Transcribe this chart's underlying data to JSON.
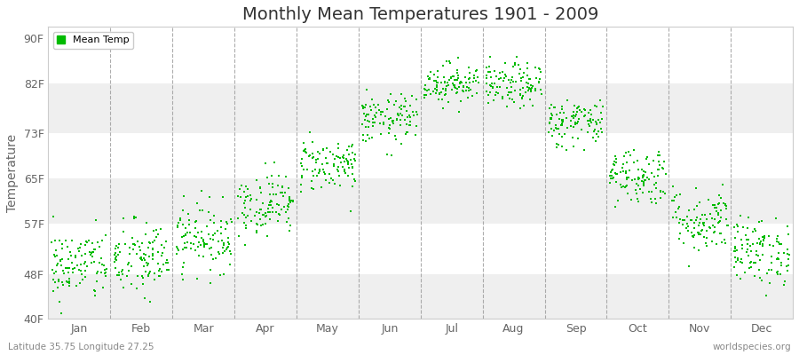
{
  "title": "Monthly Mean Temperatures 1901 - 2009",
  "ylabel": "Temperature",
  "lat_lon_label": "Latitude 35.75 Longitude 27.25",
  "watermark": "worldspecies.org",
  "legend_label": "Mean Temp",
  "dot_color": "#00BB00",
  "background_color": "#FFFFFF",
  "band_color_light": "#EFEFEF",
  "band_color_dark": "#FFFFFF",
  "dashed_line_color": "#999999",
  "years": 109,
  "monthly_means_F": [
    49.5,
    50.5,
    54.5,
    60.5,
    67.5,
    75.5,
    82.0,
    81.5,
    75.0,
    65.5,
    57.5,
    52.0
  ],
  "monthly_std_F": [
    3.2,
    3.5,
    3.0,
    2.8,
    2.4,
    2.2,
    1.8,
    2.0,
    2.2,
    2.6,
    2.9,
    3.0
  ],
  "yticks_F": [
    40,
    48,
    57,
    65,
    73,
    82,
    90
  ],
  "ytick_labels": [
    "40F",
    "48F",
    "57F",
    "65F",
    "73F",
    "82F",
    "90F"
  ],
  "ylim": [
    40,
    92
  ],
  "months": [
    "Jan",
    "Feb",
    "Mar",
    "Apr",
    "May",
    "Jun",
    "Jul",
    "Aug",
    "Sep",
    "Oct",
    "Nov",
    "Dec"
  ],
  "title_fontsize": 14,
  "axis_label_fontsize": 10,
  "tick_fontsize": 9,
  "dot_size": 2,
  "dot_marker": "s",
  "figsize": [
    9.0,
    4.0
  ],
  "dpi": 100
}
